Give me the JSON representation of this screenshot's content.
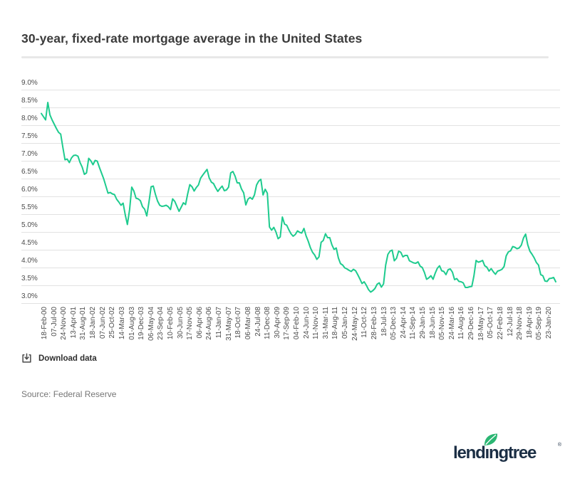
{
  "page": {
    "title": "30-year, fixed-rate mortgage average in the United States",
    "download_label": "Download data",
    "source": "Source: Federal Reserve"
  },
  "logo": {
    "text": "lendingtree",
    "part1": "lend",
    "part2": "ıngtree",
    "reg": "®"
  },
  "colors": {
    "line": "#1ecb8e",
    "grid": "#e2e2e2",
    "axis_text": "#4b4b4b",
    "title_text": "#3b3b3b",
    "source_text": "#767676",
    "download_text": "#2f2f2f",
    "icon_stroke": "#4a4a4a",
    "logo_navy": "#1b2e44",
    "leaf_green": "#2bb673",
    "divider": "#e8e8e8"
  },
  "chart_data": {
    "type": "line",
    "title": "30-year, fixed-rate mortgage average in the United States",
    "unit": "percent",
    "grid": "horizontal",
    "legend": "none",
    "ylim": [
      3.0,
      9.0
    ],
    "ytick_step": 0.5,
    "ytick_labels": [
      "9.0%",
      "8.5%",
      "8.0%",
      "7.5%",
      "7.0%",
      "6.5%",
      "6.0%",
      "5.5%",
      "5.0%",
      "4.5%",
      "4.0%",
      "3.5%",
      "3.0%"
    ],
    "xtick_labels": [
      "18-Feb-00",
      "07-Jul-00",
      "24-Nov-00",
      "13-Apr-01",
      "31-Aug-01",
      "18-Jan-02",
      "07-Jun-02",
      "25-Oct-02",
      "14-Mar-03",
      "01-Aug-03",
      "19-Dec-03",
      "06-May-04",
      "23-Sep-04",
      "10-Feb-05",
      "30-Jun-05",
      "17-Nov-05",
      "06-Apr-06",
      "24-Aug-06",
      "11-Jan-07",
      "31-May-07",
      "18-Oct-07",
      "06-Mar-08",
      "24-Jul-08",
      "11-Dec-08",
      "30-Apr-09",
      "17-Sep-09",
      "04-Feb-10",
      "24-Jun-10",
      "11-Nov-10",
      "31-Mar-11",
      "18-Aug-11",
      "05-Jan-12",
      "24-May-12",
      "11-Oct-12",
      "28-Feb-13",
      "18-Jul-13",
      "05-Dec-13",
      "24-Apr-14",
      "11-Sep-14",
      "29-Jan-15",
      "18-Jun-15",
      "05-Nov-15",
      "24-Mar-16",
      "11-Aug-16",
      "29-Dec-16",
      "18-May-17",
      "05-Oct-17",
      "22-Feb-18",
      "12-Jul-18",
      "29-Nov-18",
      "18-Apr-19",
      "05-Sep-19",
      "23-Jan-20"
    ],
    "x_frequency": "monthly (estimated from weekly chart)",
    "x_start": "Feb-2000",
    "x_end": "Jan-2020",
    "series": [
      {
        "name": "30-year fixed-rate mortgage average (%)",
        "values": [
          8.33,
          8.24,
          8.15,
          8.64,
          8.29,
          8.15,
          8.03,
          7.91,
          7.8,
          7.75,
          7.38,
          7.03,
          7.05,
          6.95,
          7.08,
          7.15,
          7.16,
          7.13,
          6.95,
          6.82,
          6.62,
          6.66,
          7.07,
          7.0,
          6.89,
          7.01,
          6.99,
          6.81,
          6.65,
          6.49,
          6.29,
          6.09,
          6.11,
          6.07,
          6.05,
          5.92,
          5.84,
          5.75,
          5.81,
          5.48,
          5.21,
          5.63,
          6.26,
          6.15,
          5.95,
          5.93,
          5.88,
          5.71,
          5.64,
          5.45,
          5.83,
          6.27,
          6.29,
          6.06,
          5.87,
          5.75,
          5.72,
          5.73,
          5.75,
          5.71,
          5.63,
          5.93,
          5.86,
          5.72,
          5.58,
          5.7,
          5.82,
          5.77,
          6.07,
          6.33,
          6.27,
          6.15,
          6.25,
          6.32,
          6.51,
          6.6,
          6.68,
          6.76,
          6.52,
          6.4,
          6.36,
          6.24,
          6.14,
          6.22,
          6.29,
          6.16,
          6.18,
          6.26,
          6.66,
          6.7,
          6.57,
          6.38,
          6.38,
          6.21,
          6.1,
          5.76,
          5.92,
          5.97,
          5.92,
          6.04,
          6.32,
          6.43,
          6.48,
          6.04,
          6.2,
          6.09,
          5.14,
          5.05,
          5.13,
          5.0,
          4.81,
          4.86,
          5.42,
          5.22,
          5.19,
          5.06,
          4.95,
          4.88,
          4.93,
          5.03,
          4.99,
          4.97,
          5.1,
          4.89,
          4.74,
          4.56,
          4.43,
          4.35,
          4.23,
          4.3,
          4.71,
          4.76,
          4.95,
          4.84,
          4.84,
          4.64,
          4.51,
          4.55,
          4.27,
          4.11,
          4.07,
          3.99,
          3.96,
          3.92,
          3.89,
          3.95,
          3.91,
          3.8,
          3.68,
          3.55,
          3.6,
          3.5,
          3.38,
          3.31,
          3.35,
          3.41,
          3.53,
          3.57,
          3.45,
          3.54,
          4.07,
          4.37,
          4.46,
          4.49,
          4.19,
          4.26,
          4.46,
          4.43,
          4.3,
          4.34,
          4.34,
          4.19,
          4.16,
          4.13,
          4.12,
          4.16,
          4.04,
          4.0,
          3.86,
          3.67,
          3.71,
          3.77,
          3.67,
          3.84,
          3.98,
          4.05,
          3.91,
          3.89,
          3.8,
          3.94,
          3.96,
          3.87,
          3.66,
          3.69,
          3.61,
          3.6,
          3.57,
          3.44,
          3.44,
          3.46,
          3.47,
          3.77,
          4.2,
          4.15,
          4.17,
          4.2,
          4.05,
          4.01,
          3.9,
          3.97,
          3.88,
          3.81,
          3.9,
          3.92,
          3.95,
          4.03,
          4.33,
          4.44,
          4.47,
          4.59,
          4.57,
          4.53,
          4.55,
          4.63,
          4.83,
          4.94,
          4.64,
          4.46,
          4.37,
          4.27,
          4.14,
          4.07,
          3.8,
          3.77,
          3.62,
          3.61,
          3.69,
          3.7,
          3.72,
          3.6
        ]
      }
    ]
  }
}
